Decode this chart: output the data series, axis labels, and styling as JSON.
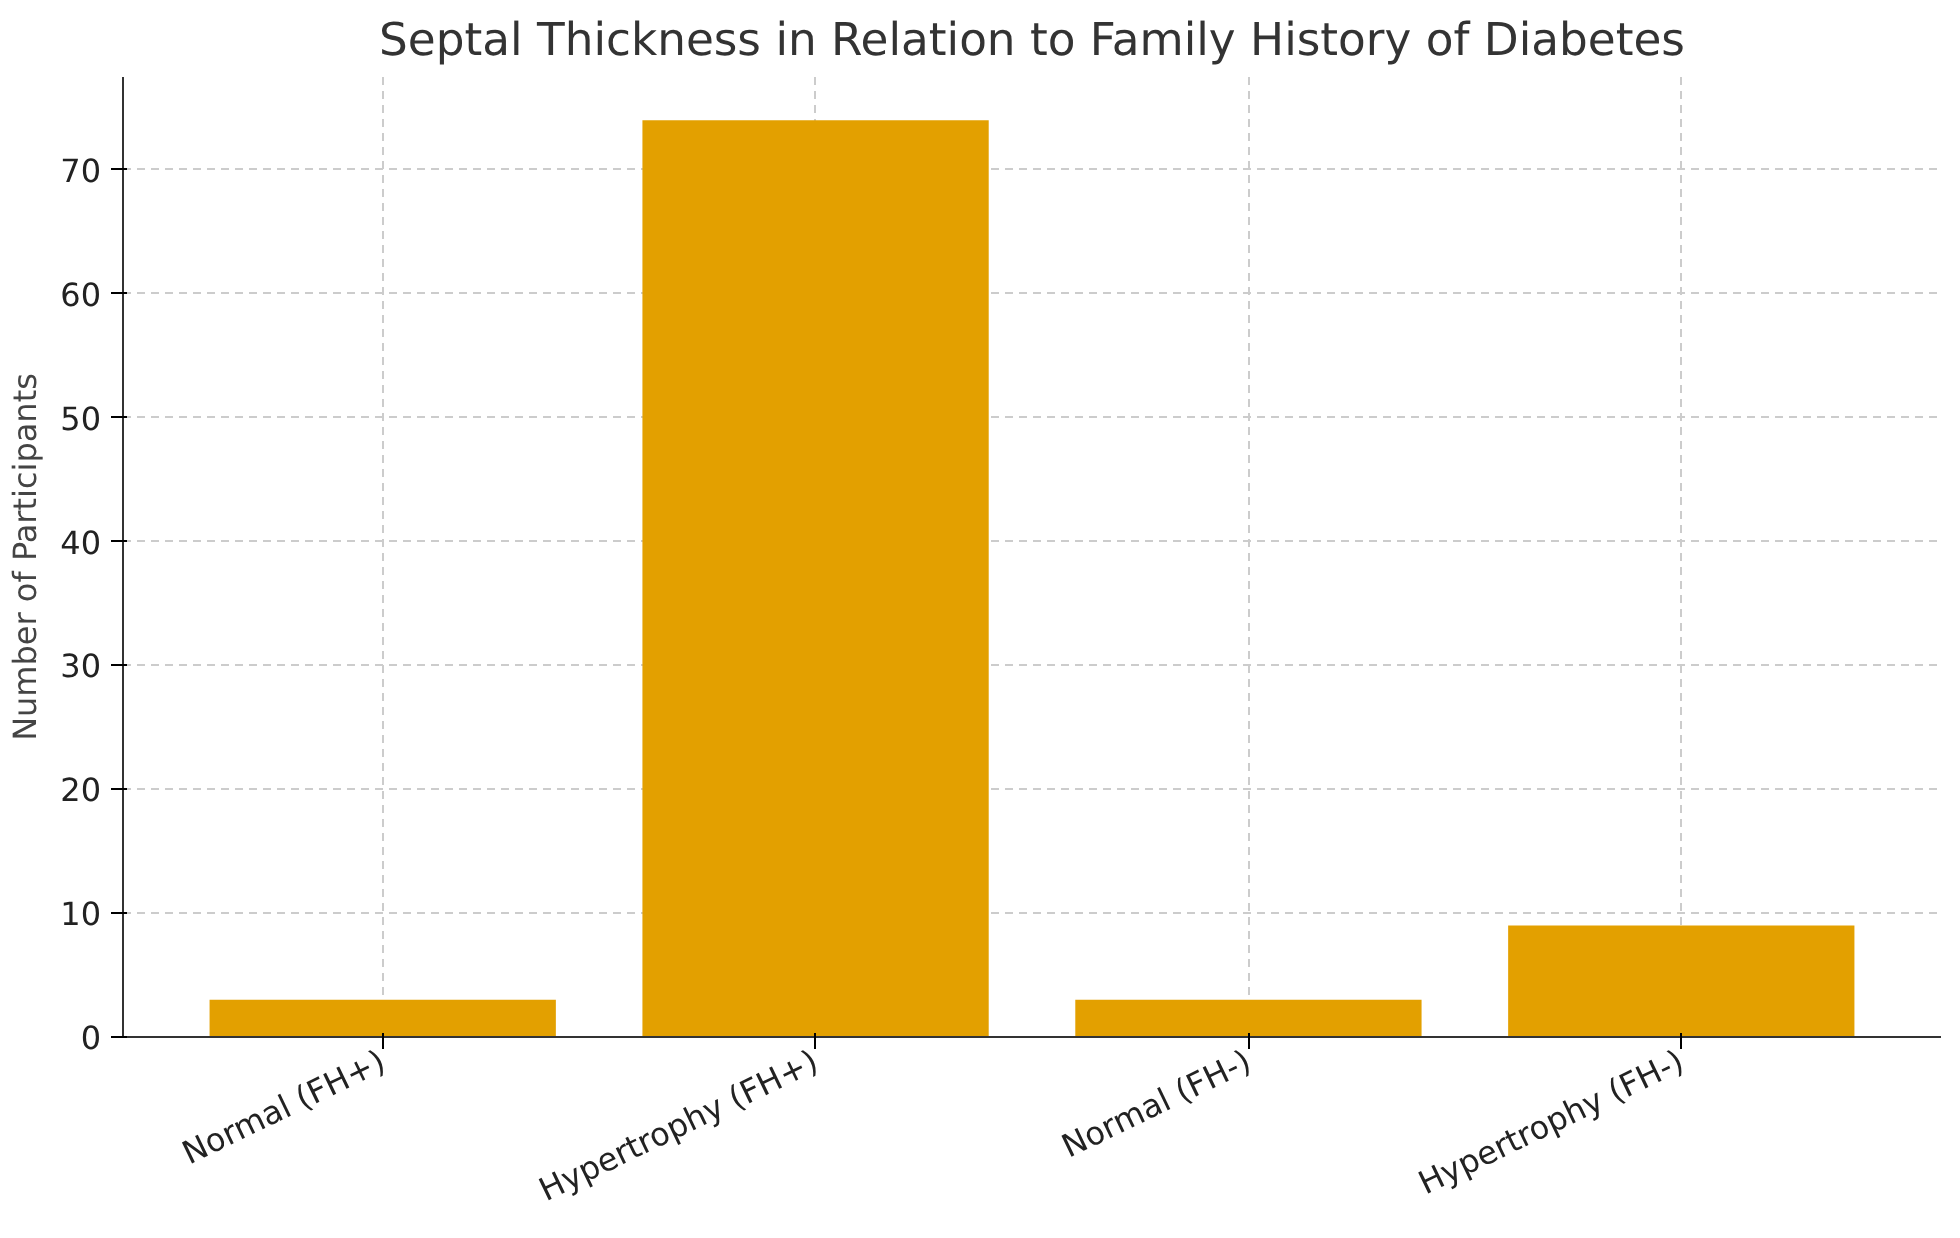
{
  "chart_data": {
    "type": "bar",
    "title": "Septal Thickness in Relation to Family History of Diabetes",
    "ylabel": "Number of Participants",
    "categories": [
      "Normal (FH+)",
      "Hypertrophy (FH+)",
      "Normal (FH-)",
      "Hypertrophy (FH-)"
    ],
    "values": [
      3,
      74,
      3,
      9
    ],
    "color": "#e3a000",
    "ylim": [
      0,
      77.5
    ],
    "yticks": [
      0,
      10,
      20,
      30,
      40,
      50,
      60,
      70
    ],
    "grid": true
  }
}
